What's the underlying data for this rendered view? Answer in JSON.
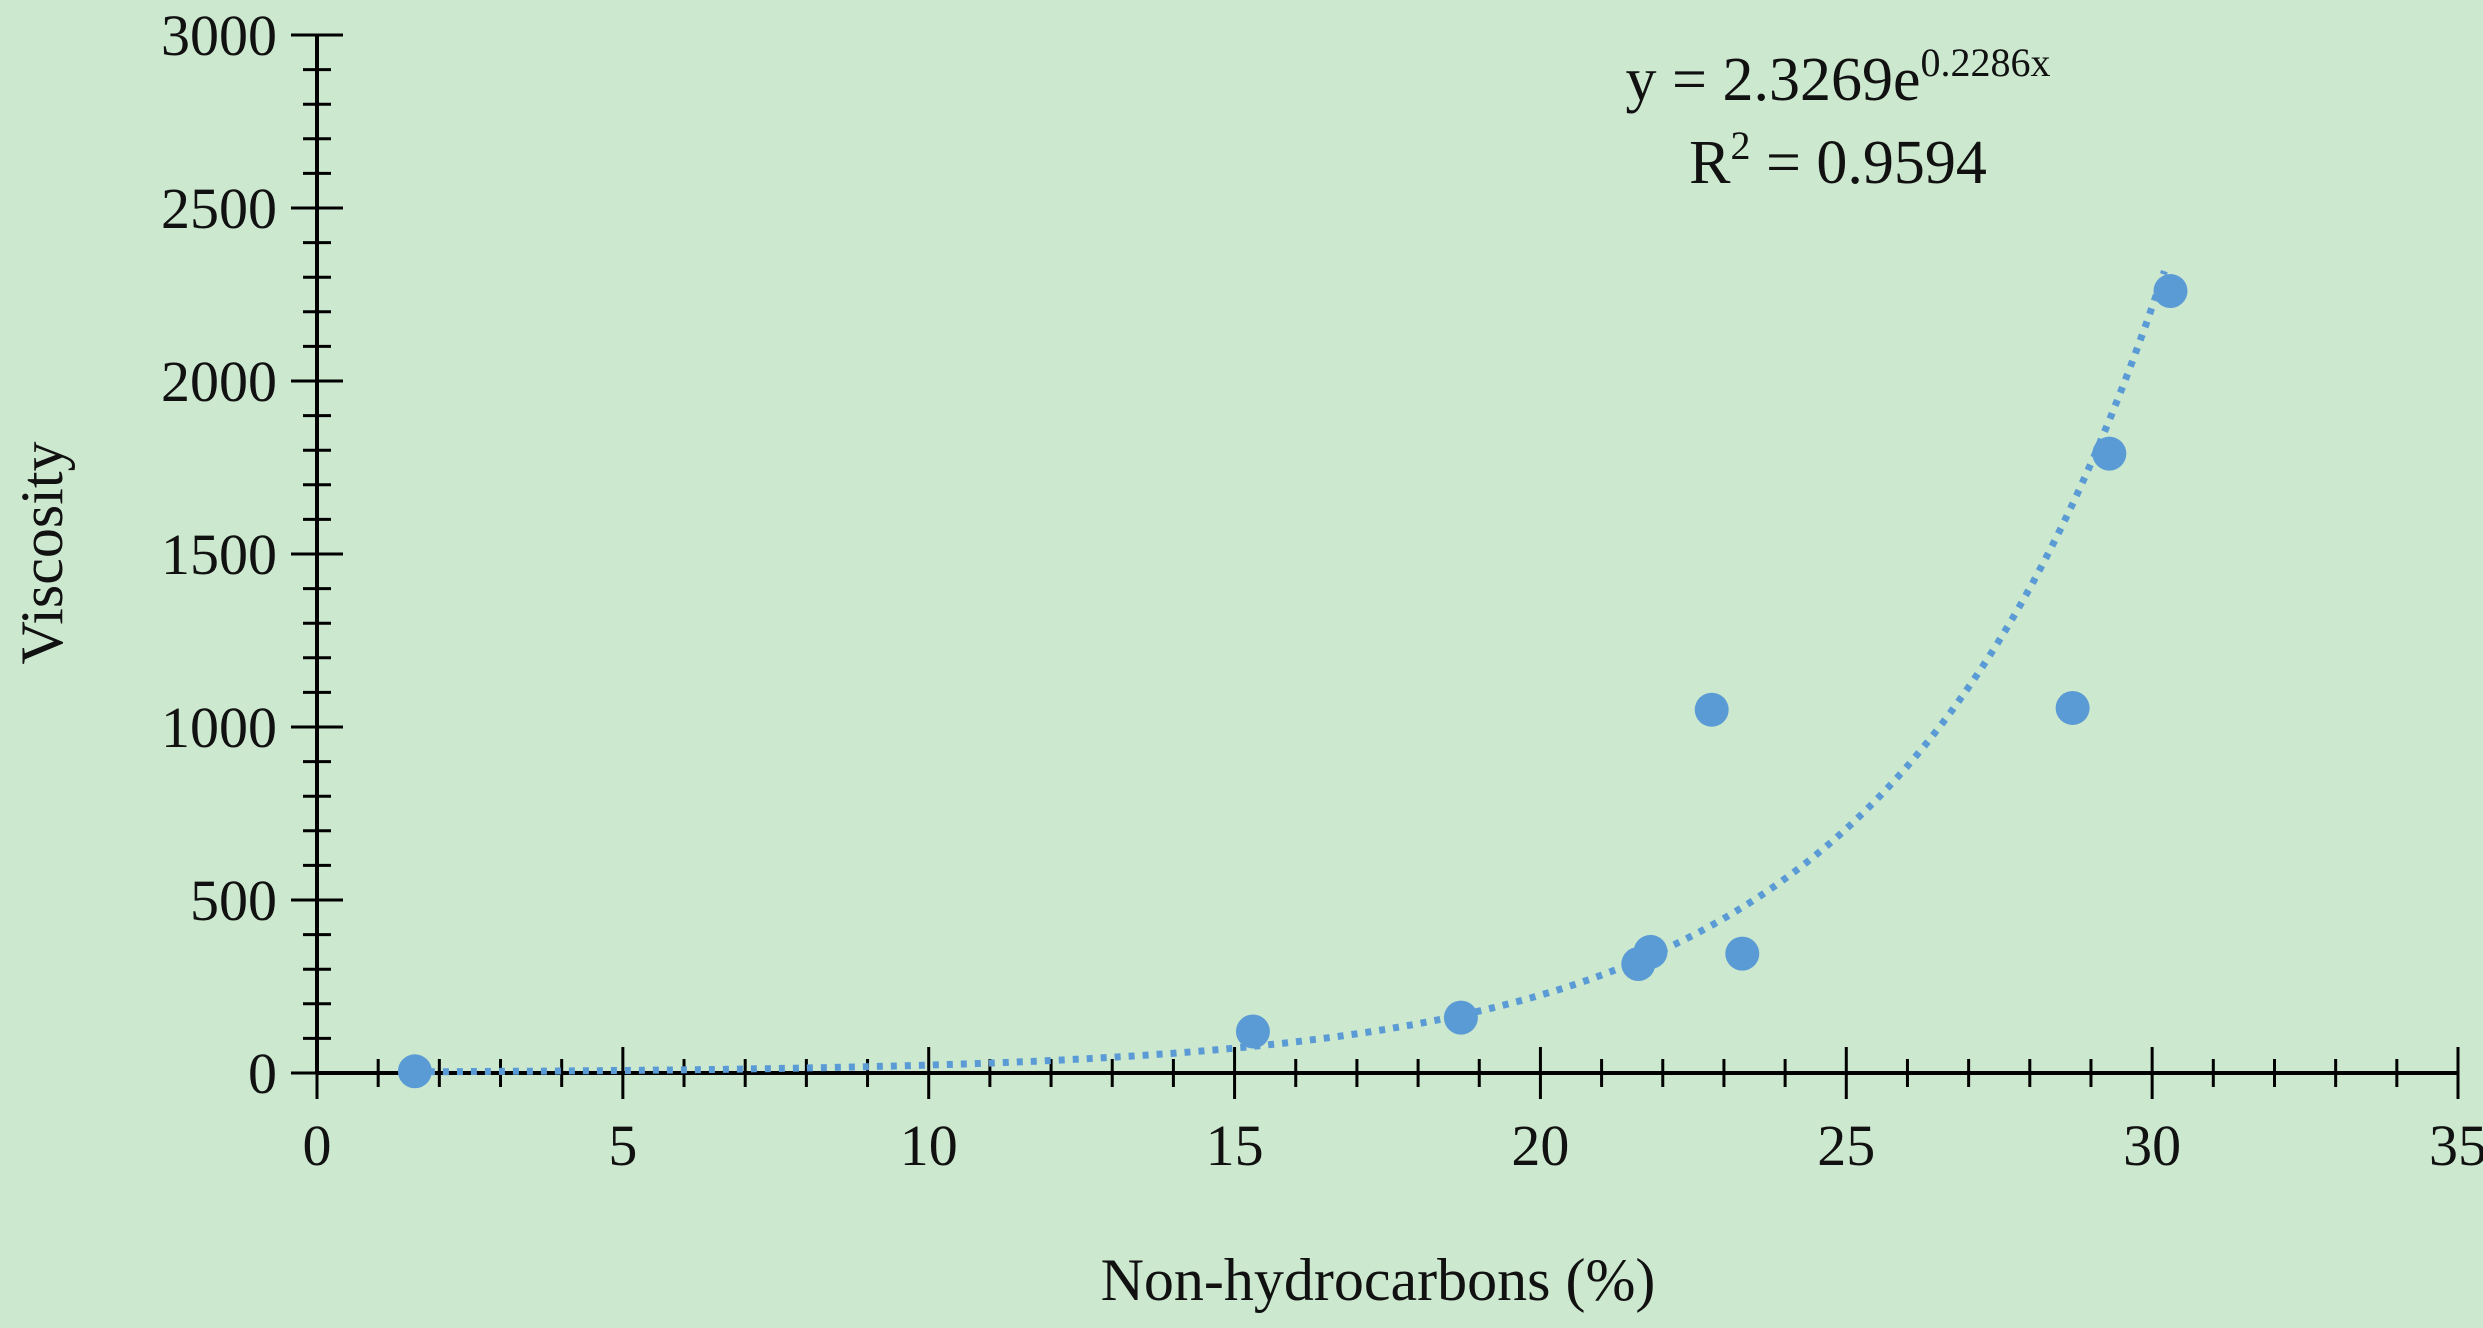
{
  "chart_data": {
    "type": "scatter",
    "xlabel": "Non-hydrocarbons (%)",
    "ylabel": "Viscosity",
    "xlim": [
      0,
      35
    ],
    "ylim": [
      0,
      3000
    ],
    "x_ticks": [
      0,
      5,
      10,
      15,
      20,
      25,
      30,
      35
    ],
    "y_ticks": [
      0,
      500,
      1000,
      1500,
      2000,
      2500,
      3000
    ],
    "x_minor_step": 1,
    "y_minor_step": 100,
    "grid": false,
    "colors": {
      "background": "#cce8cf",
      "points": "#5b9bd5",
      "trendline": "#5b9bd5",
      "axis": "#000000"
    },
    "series": [
      {
        "points": [
          {
            "x": 1.6,
            "y": 5
          },
          {
            "x": 15.3,
            "y": 120
          },
          {
            "x": 18.7,
            "y": 160
          },
          {
            "x": 21.6,
            "y": 315
          },
          {
            "x": 21.8,
            "y": 350
          },
          {
            "x": 22.8,
            "y": 1050
          },
          {
            "x": 23.3,
            "y": 345
          },
          {
            "x": 28.7,
            "y": 1055
          },
          {
            "x": 29.3,
            "y": 1790
          },
          {
            "x": 30.3,
            "y": 2260
          }
        ]
      }
    ],
    "trendline": {
      "type": "exponential",
      "a": 2.3269,
      "b": 0.2286,
      "x_range": [
        1.6,
        30.2
      ],
      "style": "dotted"
    },
    "annotation": {
      "equation_prefix": "y = 2.3269e",
      "equation_exponent": "0.2286x",
      "r2_prefix": "R",
      "r2_sup": "2",
      "r2_value": " = 0.9594"
    }
  }
}
